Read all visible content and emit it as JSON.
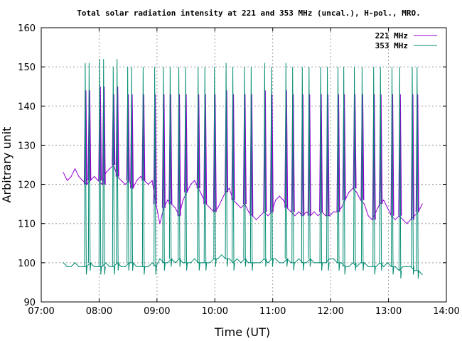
{
  "chart_data": {
    "type": "line",
    "title": "Total solar radiation intensity at 221 and 353 MHz (uncal.), H-pol., MRO.",
    "xlabel": "Time (UT)",
    "ylabel": "Arbitrary unit",
    "xlim": [
      "07:00",
      "14:00"
    ],
    "ylim": [
      90,
      160
    ],
    "xticks": [
      "07:00",
      "08:00",
      "09:00",
      "10:00",
      "11:00",
      "12:00",
      "13:00",
      "14:00"
    ],
    "yticks": [
      90,
      100,
      110,
      120,
      130,
      140,
      150,
      160
    ],
    "grid": true,
    "legend_position": "top-right",
    "series": [
      {
        "name": "221 MHz",
        "color": "#9400d3",
        "x": [
          "07:23",
          "07:27",
          "07:31",
          "07:35",
          "07:39",
          "07:43",
          "07:47",
          "07:51",
          "07:55",
          "07:59",
          "08:03",
          "08:07",
          "08:11",
          "08:15",
          "08:19",
          "08:23",
          "08:27",
          "08:31",
          "08:35",
          "08:39",
          "08:43",
          "08:47",
          "08:51",
          "08:55",
          "08:59",
          "09:03",
          "09:07",
          "09:11",
          "09:15",
          "09:19",
          "09:23",
          "09:27",
          "09:31",
          "09:35",
          "09:39",
          "09:43",
          "09:47",
          "09:51",
          "09:55",
          "09:59",
          "10:03",
          "10:07",
          "10:11",
          "10:15",
          "10:19",
          "10:23",
          "10:27",
          "10:31",
          "10:35",
          "10:39",
          "10:43",
          "10:47",
          "10:51",
          "10:55",
          "10:59",
          "11:03",
          "11:07",
          "11:11",
          "11:15",
          "11:19",
          "11:23",
          "11:27",
          "11:31",
          "11:35",
          "11:39",
          "11:43",
          "11:47",
          "11:51",
          "11:55",
          "11:59",
          "12:03",
          "12:07",
          "12:11",
          "12:15",
          "12:19",
          "12:23",
          "12:27",
          "12:31",
          "12:35",
          "12:39",
          "12:43",
          "12:47",
          "12:51",
          "12:55",
          "12:59",
          "13:03",
          "13:07",
          "13:11",
          "13:15",
          "13:19",
          "13:23",
          "13:27",
          "13:31",
          "13:35"
        ],
        "y": [
          123,
          121,
          122,
          124,
          122,
          121,
          120,
          121,
          122,
          121,
          120,
          123,
          124,
          125,
          122,
          121,
          120,
          121,
          119,
          121,
          122,
          121,
          120,
          121,
          115,
          110,
          114,
          116,
          115,
          114,
          112,
          116,
          118,
          120,
          121,
          119,
          117,
          115,
          114,
          113,
          114,
          116,
          118,
          119,
          116,
          115,
          114,
          115,
          113,
          112,
          111,
          112,
          113,
          112,
          113,
          116,
          117,
          116,
          114,
          113,
          112,
          113,
          112,
          113,
          112,
          113,
          112,
          113,
          112,
          112,
          113,
          113,
          114,
          116,
          118,
          119,
          118,
          116,
          115,
          112,
          111,
          113,
          115,
          116,
          114,
          112,
          111,
          112,
          111,
          110,
          111,
          112,
          113,
          115
        ]
      },
      {
        "name": "353 MHz",
        "color": "#008b71",
        "x": [
          "07:23",
          "07:27",
          "07:31",
          "07:35",
          "07:39",
          "07:43",
          "07:47",
          "07:51",
          "07:55",
          "07:59",
          "08:03",
          "08:07",
          "08:11",
          "08:15",
          "08:19",
          "08:23",
          "08:27",
          "08:31",
          "08:35",
          "08:39",
          "08:43",
          "08:47",
          "08:51",
          "08:55",
          "08:59",
          "09:03",
          "09:07",
          "09:11",
          "09:15",
          "09:19",
          "09:23",
          "09:27",
          "09:31",
          "09:35",
          "09:39",
          "09:43",
          "09:47",
          "09:51",
          "09:55",
          "09:59",
          "10:03",
          "10:07",
          "10:11",
          "10:15",
          "10:19",
          "10:23",
          "10:27",
          "10:31",
          "10:35",
          "10:39",
          "10:43",
          "10:47",
          "10:51",
          "10:55",
          "10:59",
          "11:03",
          "11:07",
          "11:11",
          "11:15",
          "11:19",
          "11:23",
          "11:27",
          "11:31",
          "11:35",
          "11:39",
          "11:43",
          "11:47",
          "11:51",
          "11:55",
          "11:59",
          "12:03",
          "12:07",
          "12:11",
          "12:15",
          "12:19",
          "12:23",
          "12:27",
          "12:31",
          "12:35",
          "12:39",
          "12:43",
          "12:47",
          "12:51",
          "12:55",
          "12:59",
          "13:03",
          "13:07",
          "13:11",
          "13:15",
          "13:19",
          "13:23",
          "13:27",
          "13:31",
          "13:35"
        ],
        "y": [
          100,
          99,
          99,
          100,
          99,
          99,
          99,
          100,
          99,
          99,
          99,
          100,
          99,
          99,
          100,
          99,
          99,
          100,
          100,
          99,
          99,
          99,
          99,
          100,
          99,
          101,
          100,
          100,
          101,
          100,
          101,
          100,
          100,
          100,
          101,
          100,
          100,
          100,
          100,
          101,
          101,
          102,
          101,
          101,
          100,
          101,
          100,
          101,
          100,
          100,
          100,
          100,
          101,
          100,
          101,
          101,
          100,
          100,
          101,
          100,
          100,
          101,
          100,
          100,
          101,
          100,
          100,
          100,
          100,
          101,
          101,
          100,
          100,
          99,
          99,
          100,
          99,
          100,
          100,
          99,
          99,
          99,
          100,
          99,
          100,
          99,
          99,
          98,
          99,
          99,
          99,
          98,
          98,
          97
        ],
        "spikes": [
          {
            "t": "07:46",
            "peak": 151
          },
          {
            "t": "07:50",
            "peak": 151
          },
          {
            "t": "08:01",
            "peak": 152
          },
          {
            "t": "08:05",
            "peak": 152
          },
          {
            "t": "08:15",
            "peak": 150
          },
          {
            "t": "08:19",
            "peak": 152
          },
          {
            "t": "08:30",
            "peak": 150
          },
          {
            "t": "08:34",
            "peak": 150
          },
          {
            "t": "08:46",
            "peak": 150
          },
          {
            "t": "08:58",
            "peak": 150
          },
          {
            "t": "09:07",
            "peak": 150
          },
          {
            "t": "09:14",
            "peak": 150
          },
          {
            "t": "09:23",
            "peak": 150
          },
          {
            "t": "09:30",
            "peak": 150
          },
          {
            "t": "09:43",
            "peak": 150
          },
          {
            "t": "09:50",
            "peak": 150
          },
          {
            "t": "10:00",
            "peak": 150
          },
          {
            "t": "10:12",
            "peak": 151
          },
          {
            "t": "10:19",
            "peak": 150
          },
          {
            "t": "10:31",
            "peak": 150
          },
          {
            "t": "10:38",
            "peak": 150
          },
          {
            "t": "10:52",
            "peak": 151
          },
          {
            "t": "10:59",
            "peak": 150
          },
          {
            "t": "11:14",
            "peak": 151
          },
          {
            "t": "11:21",
            "peak": 150
          },
          {
            "t": "11:31",
            "peak": 150
          },
          {
            "t": "11:38",
            "peak": 150
          },
          {
            "t": "11:50",
            "peak": 150
          },
          {
            "t": "11:57",
            "peak": 150
          },
          {
            "t": "12:08",
            "peak": 150
          },
          {
            "t": "12:14",
            "peak": 150
          },
          {
            "t": "12:25",
            "peak": 150
          },
          {
            "t": "12:33",
            "peak": 150
          },
          {
            "t": "12:45",
            "peak": 150
          },
          {
            "t": "12:52",
            "peak": 150
          },
          {
            "t": "13:04",
            "peak": 150
          },
          {
            "t": "13:12",
            "peak": 150
          },
          {
            "t": "13:25",
            "peak": 150
          },
          {
            "t": "13:30",
            "peak": 150
          }
        ]
      }
    ]
  }
}
